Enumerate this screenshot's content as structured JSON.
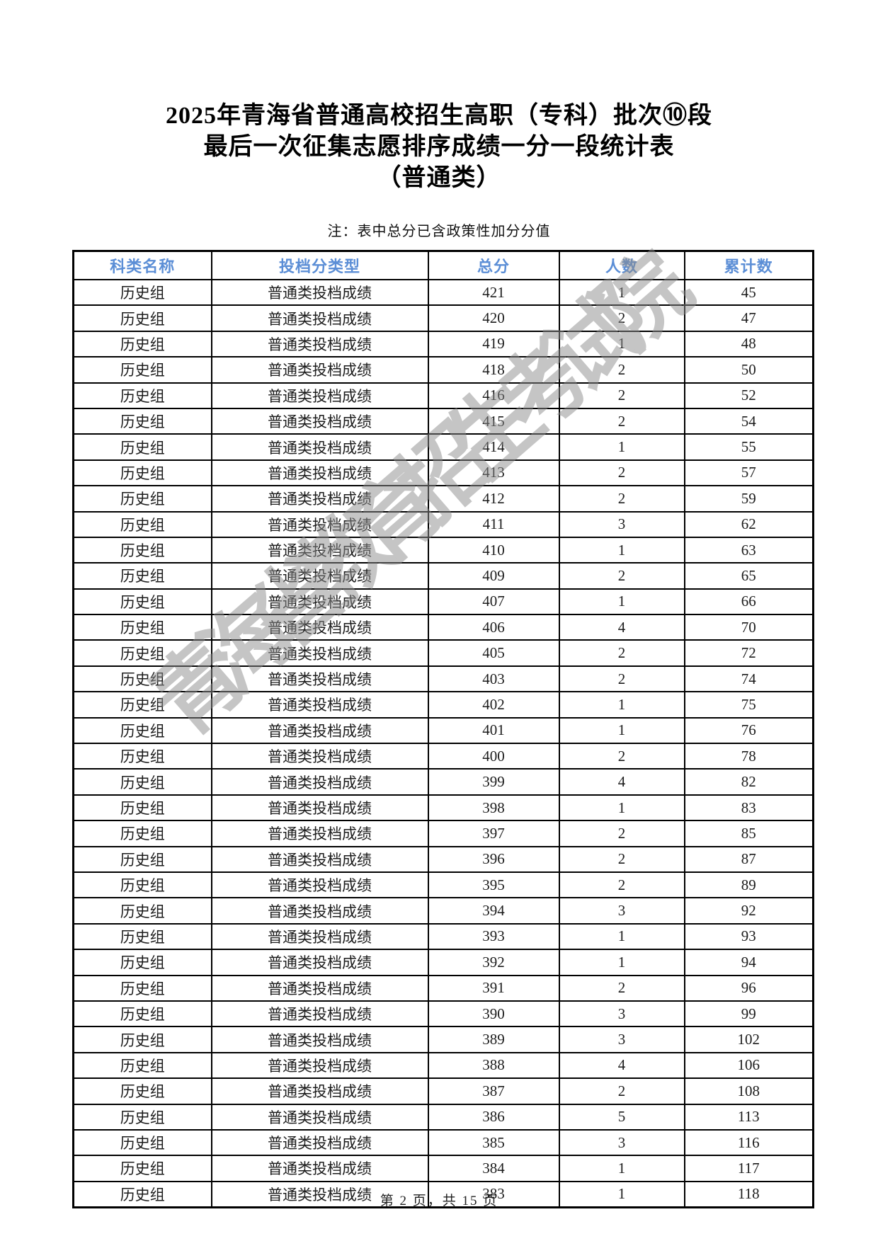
{
  "page": {
    "title_lines": [
      "2025年青海省普通高校招生高职（专科）批次⑩段",
      "最后一次征集志愿排序成绩一分一段统计表",
      "（普通类）"
    ],
    "note": "注：表中总分已含政策性加分分值",
    "watermark": "青海省教育招生考试院",
    "footer": "第 2 页，共 15 页"
  },
  "colors": {
    "header_text": "#5b8ed6",
    "body_text": "#1c1c1c",
    "border": "#000000",
    "watermark": "#8c8c8c"
  },
  "table": {
    "columns": [
      "科类名称",
      "投档分类型",
      "总分",
      "人数",
      "累计数"
    ],
    "column_keys": [
      "category",
      "score-type",
      "total-score",
      "count",
      "cumulative"
    ],
    "rows": [
      [
        "历史组",
        "普通类投档成绩",
        421,
        1,
        45
      ],
      [
        "历史组",
        "普通类投档成绩",
        420,
        2,
        47
      ],
      [
        "历史组",
        "普通类投档成绩",
        419,
        1,
        48
      ],
      [
        "历史组",
        "普通类投档成绩",
        418,
        2,
        50
      ],
      [
        "历史组",
        "普通类投档成绩",
        416,
        2,
        52
      ],
      [
        "历史组",
        "普通类投档成绩",
        415,
        2,
        54
      ],
      [
        "历史组",
        "普通类投档成绩",
        414,
        1,
        55
      ],
      [
        "历史组",
        "普通类投档成绩",
        413,
        2,
        57
      ],
      [
        "历史组",
        "普通类投档成绩",
        412,
        2,
        59
      ],
      [
        "历史组",
        "普通类投档成绩",
        411,
        3,
        62
      ],
      [
        "历史组",
        "普通类投档成绩",
        410,
        1,
        63
      ],
      [
        "历史组",
        "普通类投档成绩",
        409,
        2,
        65
      ],
      [
        "历史组",
        "普通类投档成绩",
        407,
        1,
        66
      ],
      [
        "历史组",
        "普通类投档成绩",
        406,
        4,
        70
      ],
      [
        "历史组",
        "普通类投档成绩",
        405,
        2,
        72
      ],
      [
        "历史组",
        "普通类投档成绩",
        403,
        2,
        74
      ],
      [
        "历史组",
        "普通类投档成绩",
        402,
        1,
        75
      ],
      [
        "历史组",
        "普通类投档成绩",
        401,
        1,
        76
      ],
      [
        "历史组",
        "普通类投档成绩",
        400,
        2,
        78
      ],
      [
        "历史组",
        "普通类投档成绩",
        399,
        4,
        82
      ],
      [
        "历史组",
        "普通类投档成绩",
        398,
        1,
        83
      ],
      [
        "历史组",
        "普通类投档成绩",
        397,
        2,
        85
      ],
      [
        "历史组",
        "普通类投档成绩",
        396,
        2,
        87
      ],
      [
        "历史组",
        "普通类投档成绩",
        395,
        2,
        89
      ],
      [
        "历史组",
        "普通类投档成绩",
        394,
        3,
        92
      ],
      [
        "历史组",
        "普通类投档成绩",
        393,
        1,
        93
      ],
      [
        "历史组",
        "普通类投档成绩",
        392,
        1,
        94
      ],
      [
        "历史组",
        "普通类投档成绩",
        391,
        2,
        96
      ],
      [
        "历史组",
        "普通类投档成绩",
        390,
        3,
        99
      ],
      [
        "历史组",
        "普通类投档成绩",
        389,
        3,
        102
      ],
      [
        "历史组",
        "普通类投档成绩",
        388,
        4,
        106
      ],
      [
        "历史组",
        "普通类投档成绩",
        387,
        2,
        108
      ],
      [
        "历史组",
        "普通类投档成绩",
        386,
        5,
        113
      ],
      [
        "历史组",
        "普通类投档成绩",
        385,
        3,
        116
      ],
      [
        "历史组",
        "普通类投档成绩",
        384,
        1,
        117
      ],
      [
        "历史组",
        "普通类投档成绩",
        383,
        1,
        118
      ]
    ]
  }
}
